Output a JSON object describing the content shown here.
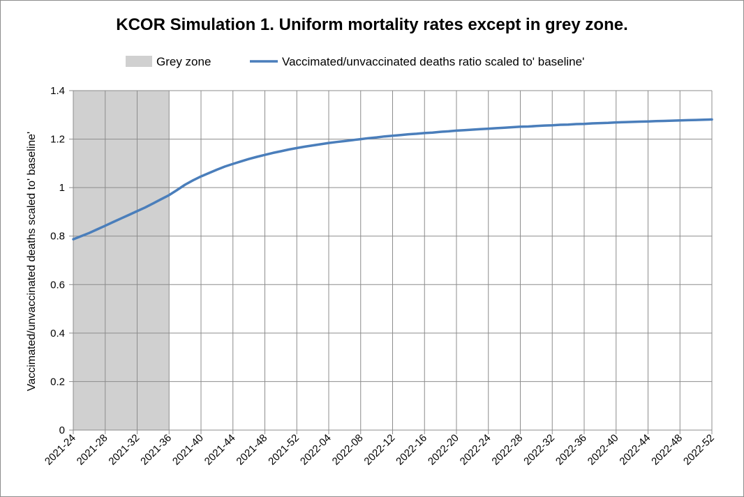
{
  "chart_data": {
    "type": "line",
    "title": "KCOR Simulation 1. Uniform mortality rates except in grey zone.",
    "xlabel": "",
    "ylabel": "Vaccimated/unvaccinated deaths scaled to' baseline'",
    "ylim": [
      0,
      1.4
    ],
    "yticks": [
      0,
      0.2,
      0.4,
      0.6,
      0.8,
      1,
      1.2,
      1.4
    ],
    "ytick_labels": [
      "0",
      "0.2",
      "0.4",
      "0.6",
      "0.8",
      "1",
      "1.2",
      "1.4"
    ],
    "grid": true,
    "legend_position": "top",
    "xtick_labels": [
      "2021-24",
      "2021-28",
      "2021-32",
      "2021-36",
      "2021-40",
      "2021-44",
      "2021-48",
      "2021-52",
      "2022-04",
      "2022-08",
      "2022-12",
      "2022-16",
      "2022-20",
      "2022-24",
      "2022-28",
      "2022-32",
      "2022-36",
      "2022-40",
      "2022-44",
      "2022-48",
      "2022-52"
    ],
    "grey_zone": {
      "name": "Grey zone",
      "start": "2021-24",
      "end": "2021-36",
      "color": "#d0d0d0"
    },
    "series": [
      {
        "name": "Vaccimated/unvaccinated deaths ratio scaled to' baseline'",
        "color": "#4a7ebb",
        "x_start_week_index": 0,
        "values": [
          0.787,
          0.8,
          0.813,
          0.828,
          0.843,
          0.858,
          0.873,
          0.888,
          0.903,
          0.918,
          0.935,
          0.952,
          0.969,
          0.99,
          1.012,
          1.03,
          1.046,
          1.06,
          1.074,
          1.087,
          1.098,
          1.108,
          1.118,
          1.127,
          1.135,
          1.143,
          1.15,
          1.157,
          1.163,
          1.169,
          1.174,
          1.179,
          1.184,
          1.188,
          1.192,
          1.196,
          1.2,
          1.204,
          1.207,
          1.211,
          1.214,
          1.217,
          1.22,
          1.222,
          1.225,
          1.227,
          1.23,
          1.232,
          1.235,
          1.237,
          1.239,
          1.241,
          1.243,
          1.245,
          1.247,
          1.249,
          1.251,
          1.252,
          1.254,
          1.256,
          1.257,
          1.259,
          1.26,
          1.262,
          1.263,
          1.265,
          1.266,
          1.267,
          1.269,
          1.27,
          1.271,
          1.272,
          1.273,
          1.274,
          1.275,
          1.276,
          1.277,
          1.278,
          1.279,
          1.28,
          1.281
        ]
      }
    ]
  }
}
